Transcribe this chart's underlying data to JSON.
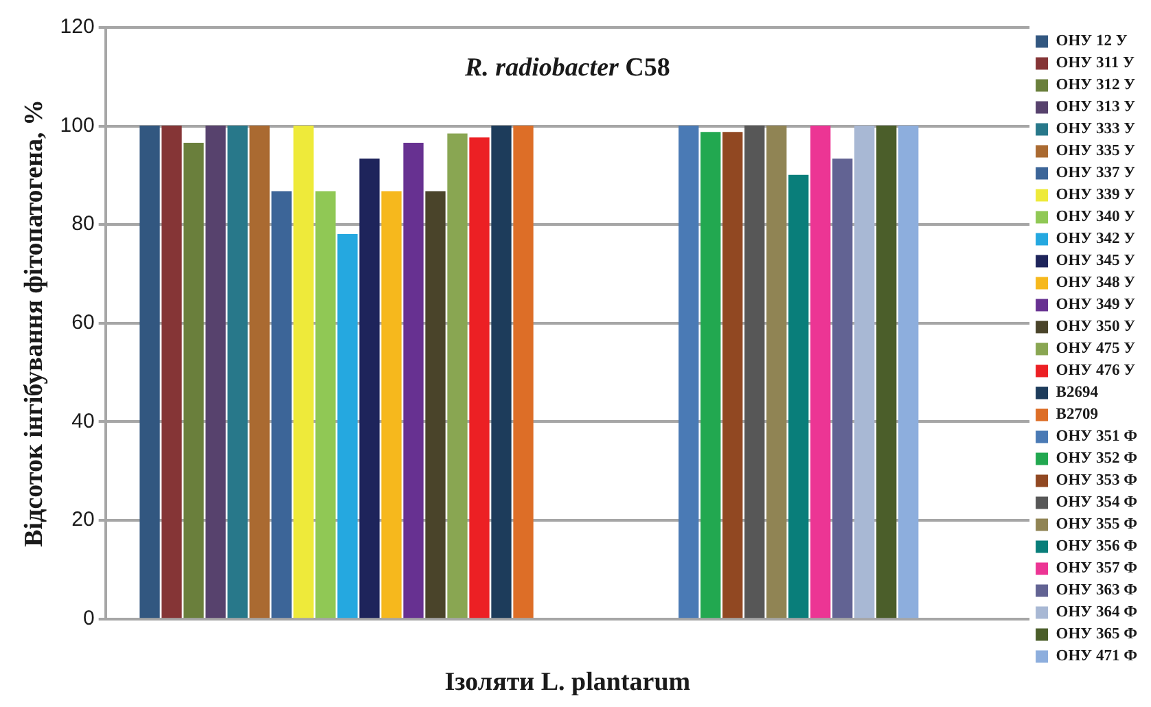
{
  "chart_data": {
    "type": "bar",
    "title": "R. radiobacter C58",
    "xlabel": "Ізоляти L. plantarum",
    "ylabel": "Відсоток інгібування фітопатогена, %",
    "categories": [
      null,
      null
    ],
    "ylim": [
      0,
      120
    ],
    "yticks": [
      0,
      20,
      40,
      60,
      80,
      100,
      120
    ],
    "grid": "y",
    "legend": "right",
    "series": [
      {
        "name": "ОНУ 12 У",
        "color": "#325780",
        "values": [
          100,
          null
        ]
      },
      {
        "name": "ОНУ 311 У",
        "color": "#853536",
        "values": [
          100,
          null
        ]
      },
      {
        "name": "ОНУ 312 У",
        "color": "#6a7f3c",
        "values": [
          96.5,
          null
        ]
      },
      {
        "name": "ОНУ 313 У",
        "color": "#57426d",
        "values": [
          100,
          null
        ]
      },
      {
        "name": "ОНУ 333 У",
        "color": "#28788a",
        "values": [
          100,
          null
        ]
      },
      {
        "name": "ОНУ 335 У",
        "color": "#aa6a31",
        "values": [
          100,
          null
        ]
      },
      {
        "name": "ОНУ 337 У",
        "color": "#3c6598",
        "values": [
          86.7,
          null
        ]
      },
      {
        "name": "ОНУ 339 У",
        "color": "#eeea3a",
        "values": [
          100,
          null
        ]
      },
      {
        "name": "ОНУ 340 У",
        "color": "#90c855",
        "values": [
          86.7,
          null
        ]
      },
      {
        "name": "ОНУ 342 У",
        "color": "#25a8e0",
        "values": [
          78,
          null
        ]
      },
      {
        "name": "ОНУ 345 У",
        "color": "#1e245b",
        "values": [
          93.3,
          null
        ]
      },
      {
        "name": "ОНУ 348 У",
        "color": "#f6b81d",
        "values": [
          86.7,
          null
        ]
      },
      {
        "name": "ОНУ 349 У",
        "color": "#673191",
        "values": [
          96.5,
          null
        ]
      },
      {
        "name": "ОНУ 350 У",
        "color": "#4a442a",
        "values": [
          86.7,
          null
        ]
      },
      {
        "name": "ОНУ 475 У",
        "color": "#89a652",
        "values": [
          98.4,
          null
        ]
      },
      {
        "name": "ОНУ 476 У",
        "color": "#ec2024",
        "values": [
          97.6,
          null
        ]
      },
      {
        "name": "B2694",
        "color": "#1d3c5b",
        "values": [
          100,
          null
        ]
      },
      {
        "name": "B2709",
        "color": "#dd6e27",
        "values": [
          100,
          null
        ]
      },
      {
        "name": "ОНУ 351 Ф",
        "color": "#4a7ab5",
        "values": [
          null,
          100
        ]
      },
      {
        "name": "ОНУ 352 Ф",
        "color": "#22a850",
        "values": [
          null,
          98.7
        ]
      },
      {
        "name": "ОНУ 353 Ф",
        "color": "#914822",
        "values": [
          null,
          98.7
        ]
      },
      {
        "name": "ОНУ 354 Ф",
        "color": "#575757",
        "values": [
          null,
          100
        ]
      },
      {
        "name": "ОНУ 355 Ф",
        "color": "#908454",
        "values": [
          null,
          100
        ]
      },
      {
        "name": "ОНУ 356 Ф",
        "color": "#097e7a",
        "values": [
          null,
          90
        ]
      },
      {
        "name": "ОНУ 357 Ф",
        "color": "#ec3594",
        "values": [
          null,
          100
        ]
      },
      {
        "name": "ОНУ 363 Ф",
        "color": "#626393",
        "values": [
          null,
          93.3
        ]
      },
      {
        "name": "ОНУ 364 Ф",
        "color": "#a8b8d4",
        "values": [
          null,
          100
        ]
      },
      {
        "name": "ОНУ 365 Ф",
        "color": "#4b5e2a",
        "values": [
          null,
          100
        ]
      },
      {
        "name": "ОНУ 471 Ф",
        "color": "#8daedd",
        "values": [
          null,
          100
        ]
      }
    ]
  }
}
